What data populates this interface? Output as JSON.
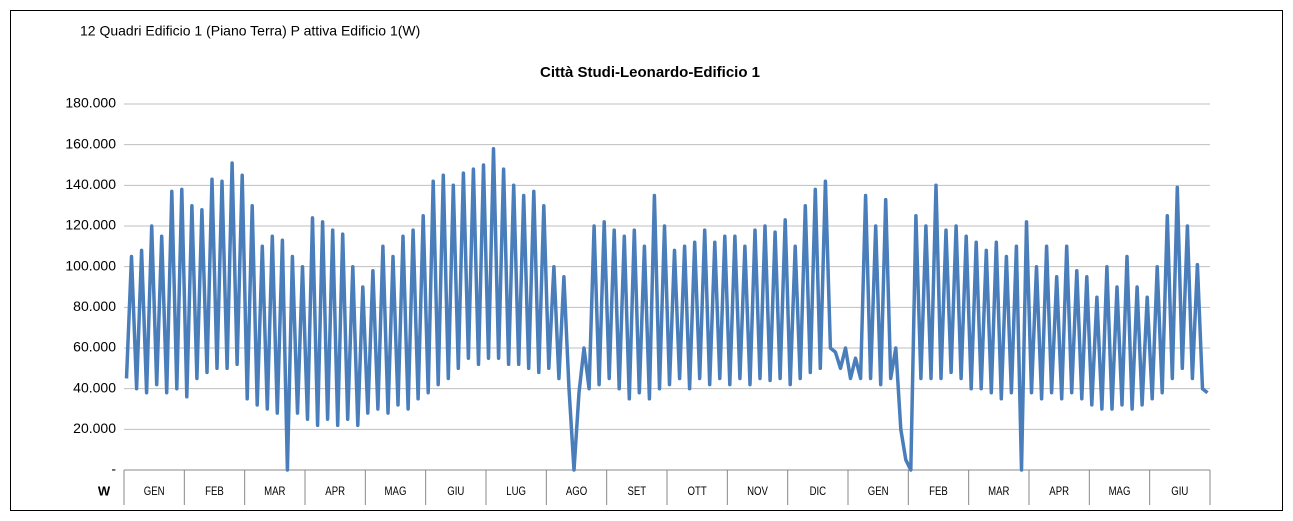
{
  "header": "12 Quadri Edificio 1 (Piano Terra) P attiva Edificio 1(W)",
  "chart_data": {
    "type": "line",
    "title": "Città Studi-Leonardo-Edificio 1",
    "x_label": "W",
    "categories": [
      "GEN",
      "FEB",
      "MAR",
      "APR",
      "MAG",
      "GIU",
      "LUG",
      "AGO",
      "SET",
      "OTT",
      "NOV",
      "DIC",
      "GEN",
      "FEB",
      "MAR",
      "APR",
      "MAG",
      "GIU"
    ],
    "series": [
      {
        "name": "P attiva Edificio 1(W)",
        "color": "#4a7ebb",
        "values": [
          [
            45000,
            105000,
            40000,
            108000,
            38000,
            120000,
            42000,
            115000,
            38000,
            137000,
            40000,
            138000
          ],
          [
            36000,
            130000,
            45000,
            128000,
            48000,
            143000,
            50000,
            142000,
            50000,
            151000,
            52000,
            145000
          ],
          [
            35000,
            130000,
            32000,
            110000,
            30000,
            115000,
            28000,
            113000,
            0,
            105000,
            28000,
            100000
          ],
          [
            25000,
            124000,
            22000,
            122000,
            25000,
            118000,
            22000,
            116000,
            25000,
            100000,
            22000,
            90000
          ],
          [
            28000,
            98000,
            30000,
            110000,
            28000,
            105000,
            32000,
            115000,
            30000,
            118000,
            35000,
            125000
          ],
          [
            38000,
            142000,
            42000,
            145000,
            45000,
            140000,
            50000,
            146000,
            55000,
            148000,
            52000,
            150000
          ],
          [
            55000,
            158000,
            55000,
            148000,
            52000,
            140000,
            52000,
            135000,
            50000,
            137000,
            48000,
            130000
          ],
          [
            50000,
            100000,
            45000,
            95000,
            40000,
            0,
            38000,
            60000,
            40000,
            120000,
            42000,
            122000
          ],
          [
            45000,
            118000,
            40000,
            115000,
            35000,
            118000,
            38000,
            110000,
            35000,
            135000,
            40000,
            120000
          ],
          [
            42000,
            108000,
            45000,
            110000,
            40000,
            112000,
            45000,
            118000,
            42000,
            112000,
            45000,
            115000
          ],
          [
            42000,
            115000,
            45000,
            110000,
            42000,
            118000,
            45000,
            120000,
            44000,
            117000,
            45000,
            123000
          ],
          [
            42000,
            110000,
            45000,
            130000,
            48000,
            138000,
            50000,
            142000,
            60000,
            58000,
            50000,
            60000
          ],
          [
            45000,
            55000,
            45000,
            135000,
            45000,
            120000,
            42000,
            133000,
            45000,
            60000,
            20000,
            5000
          ],
          [
            0,
            125000,
            45000,
            120000,
            45000,
            140000,
            45000,
            118000,
            48000,
            120000,
            45000,
            115000
          ],
          [
            40000,
            112000,
            40000,
            108000,
            38000,
            112000,
            35000,
            105000,
            38000,
            110000,
            0,
            122000
          ],
          [
            38000,
            100000,
            35000,
            110000,
            38000,
            95000,
            35000,
            110000,
            38000,
            98000,
            35000,
            95000
          ],
          [
            32000,
            85000,
            30000,
            100000,
            30000,
            90000,
            32000,
            105000,
            30000,
            90000,
            32000,
            85000
          ],
          [
            35000,
            100000,
            38000,
            125000,
            45000,
            139000,
            50000,
            120000,
            45000,
            101000,
            40000,
            38000
          ]
        ]
      }
    ],
    "ylim": [
      0,
      180000
    ],
    "yticks": [
      {
        "value": 0,
        "label": "-"
      },
      {
        "value": 20000,
        "label": "20.000"
      },
      {
        "value": 40000,
        "label": "40.000"
      },
      {
        "value": 60000,
        "label": "60.000"
      },
      {
        "value": 80000,
        "label": "80.000"
      },
      {
        "value": 100000,
        "label": "100.000"
      },
      {
        "value": 120000,
        "label": "120.000"
      },
      {
        "value": 140000,
        "label": "140.000"
      },
      {
        "value": 160000,
        "label": "160.000"
      },
      {
        "value": 180000,
        "label": "180.000"
      }
    ],
    "grid": true
  }
}
